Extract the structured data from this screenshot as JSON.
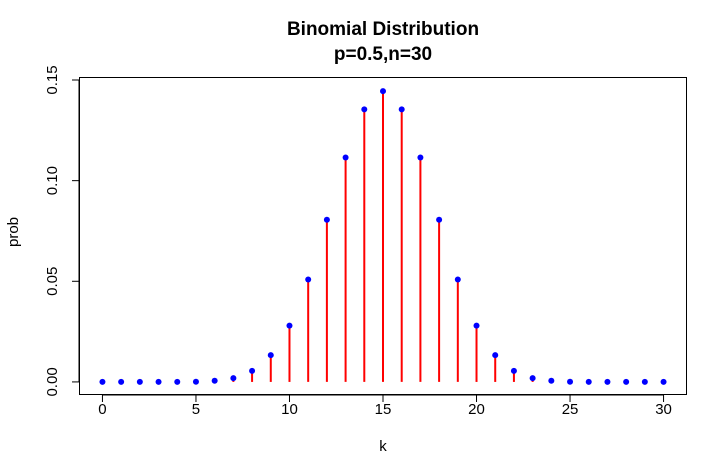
{
  "chart_data": {
    "type": "scatter",
    "title": "Binomial Distribution",
    "subtitle": "p=0.5,n=30",
    "xlabel": "k",
    "ylabel": "prob",
    "xlim": [
      -1.2,
      31.2
    ],
    "ylim": [
      -0.006,
      0.151
    ],
    "x_ticks": [
      0,
      5,
      10,
      15,
      20,
      25,
      30
    ],
    "x_tick_labels": [
      "0",
      "5",
      "10",
      "15",
      "20",
      "25",
      "30"
    ],
    "y_ticks": [
      0.0,
      0.05,
      0.1,
      0.15
    ],
    "y_tick_labels": [
      "0.00",
      "0.05",
      "0.10",
      "0.15"
    ],
    "grid": false,
    "legend": "none",
    "x": [
      0,
      1,
      2,
      3,
      4,
      5,
      6,
      7,
      8,
      9,
      10,
      11,
      12,
      13,
      14,
      15,
      16,
      17,
      18,
      19,
      20,
      21,
      22,
      23,
      24,
      25,
      26,
      27,
      28,
      29,
      30
    ],
    "values": [
      0.0,
      0.0,
      0.0,
      0.0,
      0.0,
      0.0001,
      0.0006,
      0.0019,
      0.0055,
      0.0133,
      0.028,
      0.0509,
      0.0806,
      0.1115,
      0.1354,
      0.1445,
      0.1354,
      0.1115,
      0.0806,
      0.0509,
      0.028,
      0.0133,
      0.0055,
      0.0019,
      0.0006,
      0.0001,
      0.0,
      0.0,
      0.0,
      0.0,
      0.0
    ],
    "point_color": "#0000ff",
    "stem_color": "#ff0000"
  }
}
